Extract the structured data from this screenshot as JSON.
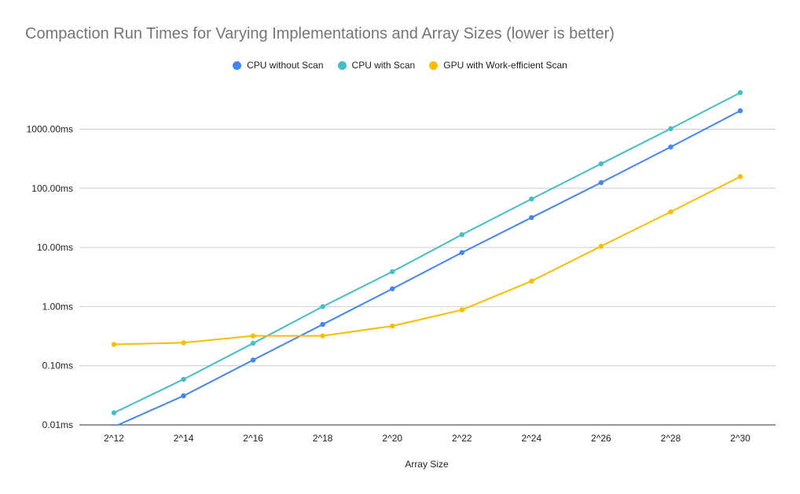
{
  "chart_data": {
    "type": "line",
    "title": "Compaction Run Times for Varying Implementations and Array Sizes (lower is better)",
    "xlabel": "Array Size",
    "ylabel": "",
    "y_scale": "log",
    "ylim": [
      0.01,
      4200
    ],
    "y_ticks": [
      0.01,
      0.1,
      1,
      10,
      100,
      1000
    ],
    "y_tick_labels": [
      "0.01ms",
      "0.10ms",
      "1.00ms",
      "10.00ms",
      "100.00ms",
      "1000.00ms"
    ],
    "categories": [
      "2^12",
      "2^14",
      "2^16",
      "2^18",
      "2^20",
      "2^22",
      "2^24",
      "2^26",
      "2^28",
      "2^30"
    ],
    "grid": true,
    "legend_position": "top",
    "series": [
      {
        "name": "CPU without Scan",
        "color": "#4285f4",
        "values": [
          0.0093,
          0.031,
          0.125,
          0.5,
          2.0,
          8.2,
          32,
          125,
          500,
          2050
        ]
      },
      {
        "name": "CPU with Scan",
        "color": "#46bdc6",
        "values": [
          0.016,
          0.059,
          0.24,
          1.0,
          3.9,
          16.5,
          66,
          260,
          1020,
          4150
        ]
      },
      {
        "name": "GPU with Work-efficient Scan",
        "color": "#fbbc04",
        "values": [
          0.23,
          0.245,
          0.32,
          0.32,
          0.47,
          0.88,
          2.7,
          10.5,
          40,
          158
        ]
      }
    ]
  }
}
